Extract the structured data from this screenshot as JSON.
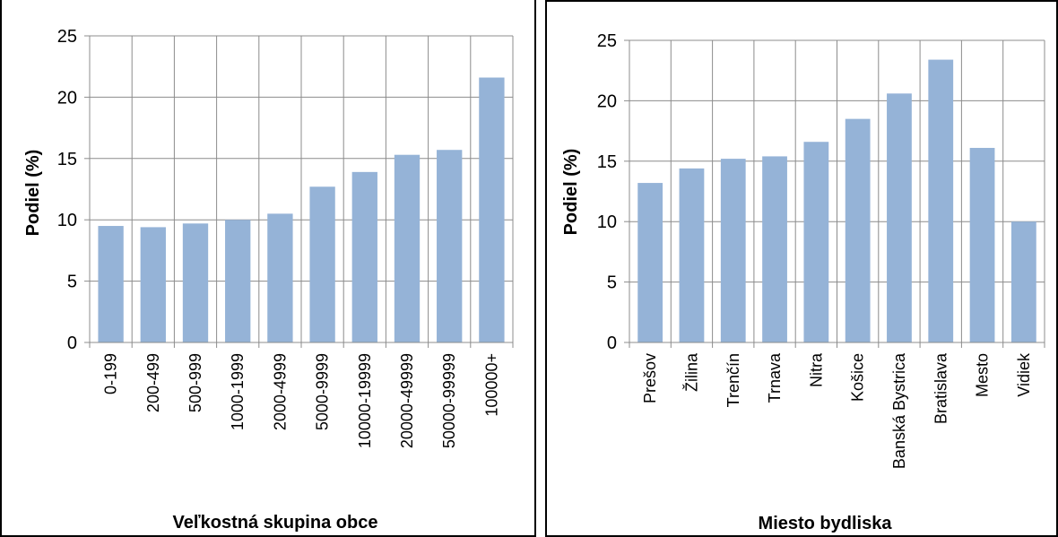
{
  "chart_data": [
    {
      "type": "bar",
      "categories": [
        "0-199",
        "200-499",
        "500-999",
        "1000-1999",
        "2000-4999",
        "5000-9999",
        "10000-19999",
        "20000-49999",
        "50000-99999",
        "100000+"
      ],
      "values": [
        9.5,
        9.4,
        9.7,
        10.0,
        10.5,
        12.7,
        13.9,
        15.3,
        15.7,
        21.6
      ],
      "xlabel": "Veľkostná skupina obce",
      "ylabel": "Podiel (%)",
      "ylim": [
        0,
        25
      ],
      "yticks": [
        "0",
        "5",
        "10",
        "15",
        "20",
        "25"
      ],
      "grid": true,
      "bar_color": "#95b3d7"
    },
    {
      "type": "bar",
      "categories": [
        "Prešov",
        "Žilina",
        "Trenčín",
        "Trnava",
        "Nitra",
        "Košice",
        "Banská Bystrica",
        "Bratislava",
        "Mesto",
        "Vidiek"
      ],
      "values": [
        13.2,
        14.4,
        15.2,
        15.4,
        16.6,
        18.5,
        20.6,
        23.4,
        16.1,
        10.0
      ],
      "xlabel": "Miesto bydliska",
      "ylabel": "Podiel (%)",
      "ylim": [
        0,
        25
      ],
      "yticks": [
        "0",
        "5",
        "10",
        "15",
        "20",
        "25"
      ],
      "grid": true,
      "bar_color": "#95b3d7"
    }
  ]
}
